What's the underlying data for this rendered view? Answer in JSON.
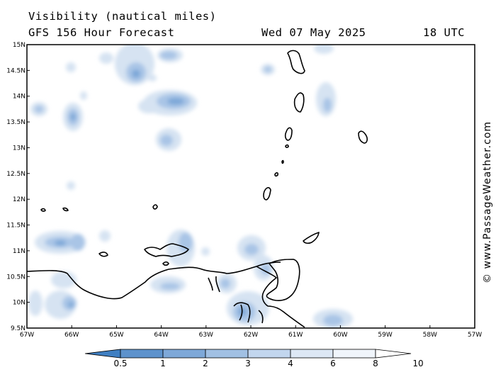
{
  "header": {
    "title": "Visibility (nautical miles)",
    "model": "GFS 156 Hour Forecast",
    "date": "Wed 07 May 2025",
    "time": "18 UTC"
  },
  "credit": "© www.PassageWeather.com",
  "axes": {
    "lat_labels": [
      "15N",
      "14.5N",
      "14N",
      "13.5N",
      "13N",
      "12.5N",
      "12N",
      "11.5N",
      "11N",
      "10.5N",
      "10N",
      "9.5N"
    ],
    "lat_values": [
      15,
      14.5,
      14,
      13.5,
      13,
      12.5,
      12,
      11.5,
      11,
      10.5,
      10,
      9.5
    ],
    "lon_labels": [
      "67W",
      "66W",
      "65W",
      "64W",
      "63W",
      "62W",
      "61W",
      "60W",
      "59W",
      "58W",
      "57W"
    ],
    "lon_values": [
      -67,
      -66,
      -65,
      -64,
      -63,
      -62,
      -61,
      -60,
      -59,
      -58,
      -57
    ]
  },
  "legend": {
    "labels": [
      "0.5",
      "1",
      "2",
      "3",
      "4",
      "6",
      "8",
      "10"
    ],
    "colors": [
      "#3f7fc2",
      "#5d92cc",
      "#7ea8d8",
      "#a1c0e3",
      "#c2d6ee",
      "#dde8f5",
      "#f0f5fb",
      "#ffffff"
    ]
  }
}
